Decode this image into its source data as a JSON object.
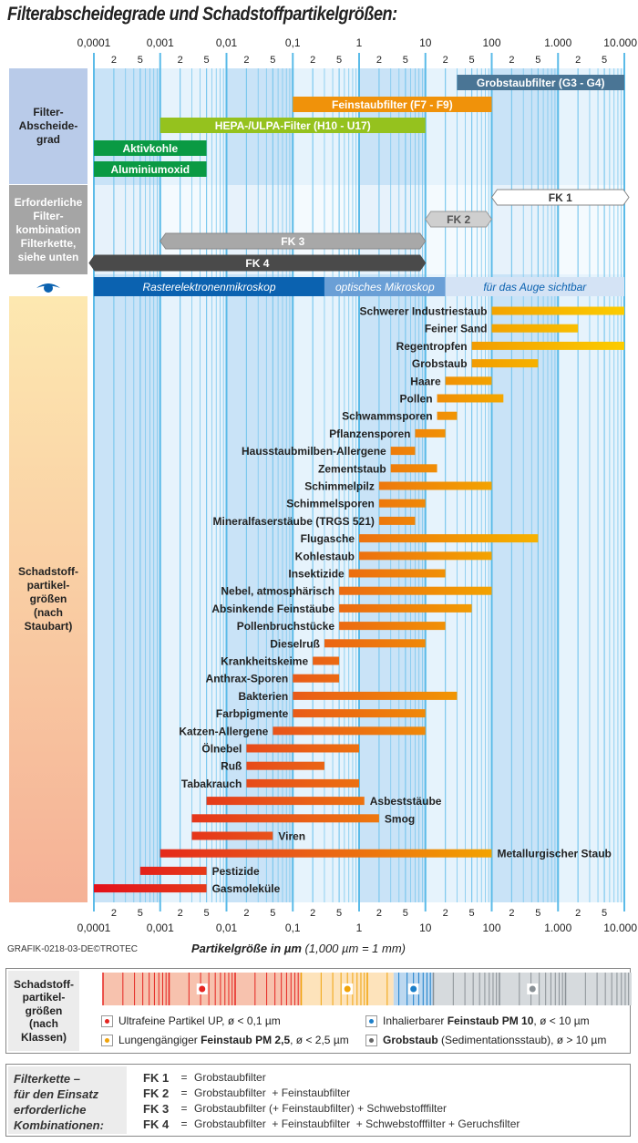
{
  "title": "Filterabscheidegrade und Schadstoffpartikelgrößen:",
  "credit": "GRAFIK-0218-03-DE©TROTEC",
  "chart_data": {
    "type": "bar",
    "orientation": "horizontal-range",
    "title": "Filterabscheidegrade und Schadstoffpartikelgrößen:",
    "xlabel": "Partikelgröße in µm",
    "xlabel_note": "(1,000 µm = 1 mm)",
    "xscale": "log",
    "xlim": [
      0.0001,
      10000
    ],
    "xticks": [
      0.0001,
      0.001,
      0.01,
      0.1,
      1,
      10,
      100,
      1000,
      10000
    ],
    "xtick_labels": [
      "0,0001",
      "0,001",
      "0,01",
      "0,1",
      "1",
      "10",
      "100",
      "1.000",
      "10.000"
    ],
    "minor_tick_labels": [
      "2",
      "5"
    ],
    "grid": true,
    "sections": {
      "filter_label": "Filter-\nAbscheide-\ngrad",
      "combo_label": "Erforderliche\nFilter-\nkombination\nFilterkette,\nsiehe unten",
      "dust_label": "Schadstoff-\npartikel-\ngrößen\n(nach\nStaubart)"
    },
    "filters": [
      {
        "name": "Grobstaubfilter (G3 - G4)",
        "from": 30,
        "to": 10000,
        "color": "#4a7595"
      },
      {
        "name": "Feinstaubfilter (F7 - F9)",
        "from": 0.1,
        "to": 100,
        "color": "#f0920a"
      },
      {
        "name": "HEPA-/ULPA-Filter (H10 - U17)",
        "from": 0.001,
        "to": 10,
        "color": "#95c21e"
      },
      {
        "name": "Aktivkohle",
        "from": 0.0001,
        "to": 0.005,
        "color": "#0a9a43"
      },
      {
        "name": "Aluminiumoxid",
        "from": 0.0001,
        "to": 0.005,
        "color": "#0a9a43"
      }
    ],
    "filter_chains": [
      {
        "name": "FK 1",
        "from": 100,
        "to": 10000,
        "style": "white"
      },
      {
        "name": "FK 2",
        "from": 10,
        "to": 100,
        "style": "lightgray"
      },
      {
        "name": "FK 3",
        "from": 0.001,
        "to": 10,
        "style": "gray"
      },
      {
        "name": "FK 4",
        "from": 0.0001,
        "to": 10,
        "style": "dark"
      }
    ],
    "visibility": [
      {
        "name": "Rasterelektronenmikroskop",
        "from": 0.0001,
        "to": 0.3,
        "color": "#0b62b0"
      },
      {
        "name": "optisches Mikroskop",
        "from": 0.3,
        "to": 20,
        "color": "#6a9fd6"
      },
      {
        "name": "für das Auge sichtbar",
        "from": 20,
        "to": 10000,
        "color": "#d4e3f5"
      }
    ],
    "series": [
      {
        "name": "Schwerer Industriestaub",
        "from": 100,
        "to": 10000,
        "label_side": "left"
      },
      {
        "name": "Feiner Sand",
        "from": 100,
        "to": 2000,
        "label_side": "left"
      },
      {
        "name": "Regentropfen",
        "from": 50,
        "to": 10000,
        "label_side": "left"
      },
      {
        "name": "Grobstaub",
        "from": 50,
        "to": 500,
        "label_side": "left"
      },
      {
        "name": "Haare",
        "from": 20,
        "to": 100,
        "label_side": "left"
      },
      {
        "name": "Pollen",
        "from": 15,
        "to": 150,
        "label_side": "left"
      },
      {
        "name": "Schwammsporen",
        "from": 15,
        "to": 30,
        "label_side": "left"
      },
      {
        "name": "Pflanzensporen",
        "from": 7,
        "to": 20,
        "label_side": "left"
      },
      {
        "name": "Hausstaubmilben-Allergene",
        "from": 3,
        "to": 7,
        "label_side": "left"
      },
      {
        "name": "Zementstaub",
        "from": 3,
        "to": 15,
        "label_side": "left"
      },
      {
        "name": "Schimmelpilz",
        "from": 2,
        "to": 100,
        "label_side": "left"
      },
      {
        "name": "Schimmelsporen",
        "from": 2,
        "to": 10,
        "label_side": "left"
      },
      {
        "name": "Mineralfaserstäube (TRGS 521)",
        "from": 2,
        "to": 7,
        "label_side": "left"
      },
      {
        "name": "Flugasche",
        "from": 1,
        "to": 500,
        "label_side": "left"
      },
      {
        "name": "Kohlestaub",
        "from": 1,
        "to": 100,
        "label_side": "left"
      },
      {
        "name": "Insektizide",
        "from": 0.7,
        "to": 20,
        "label_side": "left"
      },
      {
        "name": "Nebel, atmosphärisch",
        "from": 0.5,
        "to": 100,
        "label_side": "left"
      },
      {
        "name": "Absinkende Feinstäube",
        "from": 0.5,
        "to": 50,
        "label_side": "left"
      },
      {
        "name": "Pollenbruchstücke",
        "from": 0.5,
        "to": 20,
        "label_side": "left"
      },
      {
        "name": "Dieselruß",
        "from": 0.3,
        "to": 10,
        "label_side": "left"
      },
      {
        "name": "Krankheitskeime",
        "from": 0.2,
        "to": 0.5,
        "label_side": "left"
      },
      {
        "name": "Anthrax-Sporen",
        "from": 0.1,
        "to": 0.5,
        "label_side": "left"
      },
      {
        "name": "Bakterien",
        "from": 0.1,
        "to": 30,
        "label_side": "left"
      },
      {
        "name": "Farbpigmente",
        "from": 0.1,
        "to": 10,
        "label_side": "left"
      },
      {
        "name": "Katzen-Allergene",
        "from": 0.05,
        "to": 10,
        "label_side": "left"
      },
      {
        "name": "Ölnebel",
        "from": 0.02,
        "to": 1,
        "label_side": "left"
      },
      {
        "name": "Ruß",
        "from": 0.02,
        "to": 0.3,
        "label_side": "left"
      },
      {
        "name": "Tabakrauch",
        "from": 0.02,
        "to": 1,
        "label_side": "left"
      },
      {
        "name": "Asbeststäube",
        "from": 0.005,
        "to": 1.2,
        "label_side": "right"
      },
      {
        "name": "Smog",
        "from": 0.003,
        "to": 2,
        "label_side": "right"
      },
      {
        "name": "Viren",
        "from": 0.003,
        "to": 0.05,
        "label_side": "right"
      },
      {
        "name": "Metallurgischer Staub",
        "from": 0.001,
        "to": 100,
        "label_side": "right"
      },
      {
        "name": "Pestizide",
        "from": 0.0005,
        "to": 0.005,
        "label_side": "right"
      },
      {
        "name": "Gasmoleküle",
        "from": 0.0001,
        "to": 0.005,
        "label_side": "right"
      }
    ]
  },
  "classes": {
    "label": "Schadstoff-\npartikel-\ngrößen\n(nach\nKlassen)",
    "items": [
      {
        "icon": "ultrafine-icon",
        "text_pre": "Ultrafeine Partikel UP, ",
        "bold": "",
        "text_post": "ø < 0,1 µm",
        "color": "#e52521"
      },
      {
        "icon": "pm25-icon",
        "text_pre": "Lungengängiger ",
        "bold": "Feinstaub PM 2,5",
        "text_post": ", ø < 2,5 µm",
        "color": "#f0a30a"
      },
      {
        "icon": "pm10-icon",
        "text_pre": "Inhalierbarer ",
        "bold": "Feinstaub PM 10",
        "text_post": ", ø < 10 µm",
        "color": "#1c7fc9"
      },
      {
        "icon": "coarse-icon",
        "text_pre": "",
        "bold": "Grobstaub",
        "text_post": " (Sedimentationsstaub), ø > 10 µm",
        "color": "#666666"
      }
    ]
  },
  "fk_legend": {
    "label": "Filterkette –\nfür den Einsatz\nerforderliche\nKombinationen:",
    "rows": [
      {
        "key": "FK 1",
        "eq": "=",
        "value": "Grobstaubfilter"
      },
      {
        "key": "FK 2",
        "eq": "=",
        "value": "Grobstaubfilter  + Feinstaubfilter"
      },
      {
        "key": "FK 3",
        "eq": "=",
        "value": "Grobstaubfilter (+ Feinstaubfilter) + Schwebstofffilter"
      },
      {
        "key": "FK 4",
        "eq": "=",
        "value": "Grobstaubfilter  + Feinstaubfilter  + Schwebstofffilter + Geruchsfilter"
      }
    ]
  }
}
